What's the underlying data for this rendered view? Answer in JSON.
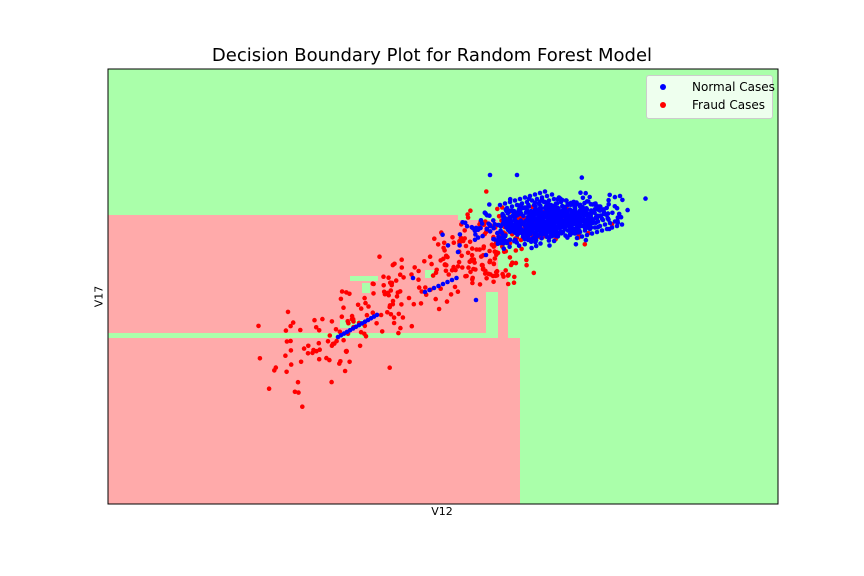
{
  "chart_data": {
    "type": "scatter",
    "title": "Decision Boundary Plot for Random Forest Model",
    "xlabel": "V12",
    "ylabel": "V17",
    "xticks": false,
    "yticks": false,
    "legend_position": "top-right",
    "background_regions": {
      "class_colors": {
        "normal": "#aaffaa",
        "fraud": "#ffaaaa"
      }
    },
    "series": [
      {
        "name": "Normal Cases",
        "color": "#0000ff"
      },
      {
        "name": "Fraud Cases",
        "color": "#ff0000"
      }
    ]
  }
}
